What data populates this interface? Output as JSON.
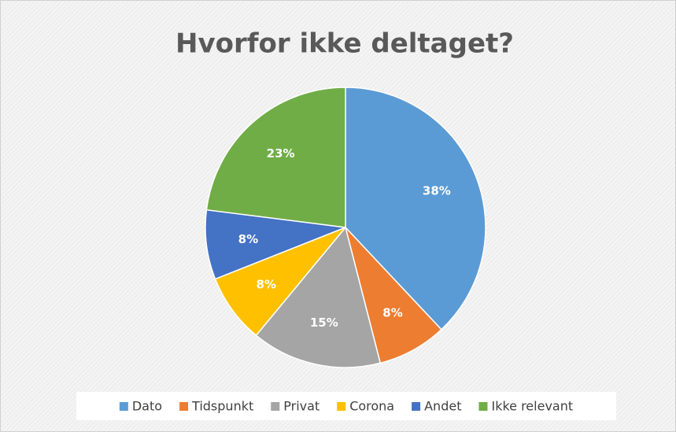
{
  "chart_data": {
    "type": "pie",
    "title": "Hvorfor ikke deltaget?",
    "categories": [
      "Dato",
      "Tidspunkt",
      "Privat",
      "Corona",
      "Andet",
      "Ikke relevant"
    ],
    "values": [
      38,
      8,
      15,
      8,
      8,
      23
    ],
    "value_labels": [
      "38%",
      "8%",
      "15%",
      "8%",
      "8%",
      "23%"
    ],
    "colors": [
      "#5b9bd5",
      "#ed7d31",
      "#a5a5a5",
      "#ffc000",
      "#4472c4",
      "#70ad47"
    ],
    "legend": "bottom"
  }
}
